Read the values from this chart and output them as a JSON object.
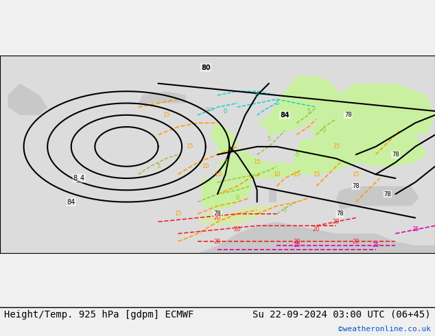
{
  "title_left": "Height/Temp. 925 hPa [gdpm] ECMWF",
  "title_right": "Su 22-09-2024 03:00 UTC (06+45)",
  "credit": "©weatheronline.co.uk",
  "bg_color": "#e8e8e8",
  "land_green_color": "#c8f0a0",
  "land_gray_color": "#c8c8c8",
  "ocean_color": "#dcdcdc",
  "contour_black_color": "#000000",
  "contour_orange_color": "#ff9900",
  "contour_green_color": "#90c030",
  "contour_cyan_color": "#00cccc",
  "contour_red_color": "#ee2222",
  "contour_magenta_color": "#dd00aa",
  "title_fontsize": 10,
  "credit_fontsize": 8,
  "figsize": [
    6.34,
    4.9
  ],
  "dpi": 100
}
